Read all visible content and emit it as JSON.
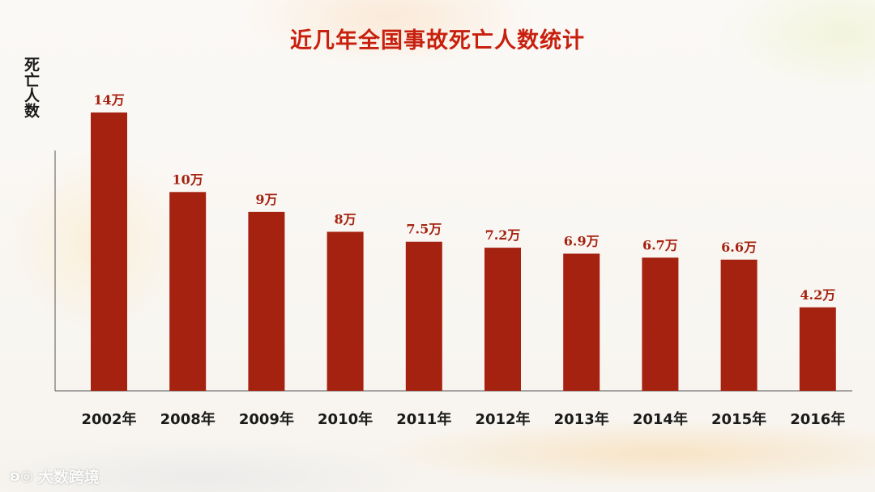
{
  "chart_data": {
    "type": "bar",
    "title": "近几年全国事故死亡人数统计",
    "ylabel": "死亡人数",
    "xlabel": "",
    "categories": [
      "2002年",
      "2008年",
      "2009年",
      "2010年",
      "2011年",
      "2012年",
      "2013年",
      "2014年",
      "2015年",
      "2016年"
    ],
    "values": [
      14,
      10,
      9,
      8,
      7.5,
      7.2,
      6.9,
      6.7,
      6.6,
      4.2
    ],
    "value_labels": [
      "14万",
      "10万",
      "9万",
      "8万",
      "7.5万",
      "7.2万",
      "6.9万",
      "6.7万",
      "6.6万",
      "4.2万"
    ],
    "unit": "万",
    "ylim": [
      0,
      15.1
    ],
    "grid": false,
    "bar_color": "#a52210",
    "label_color": "#a52210"
  },
  "watermark": {
    "icon": "logo-icon",
    "text": "大数跨境"
  }
}
